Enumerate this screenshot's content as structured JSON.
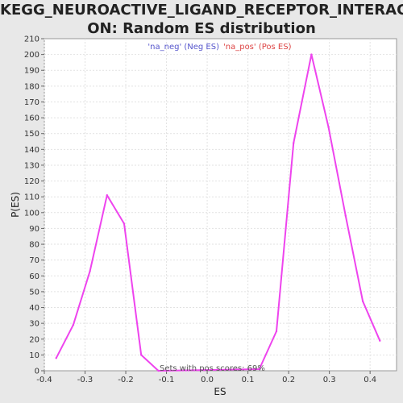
{
  "chart_data": {
    "type": "line",
    "title_line1": "KEGG_NEUROACTIVE_LIGAND_RECEPTOR_INTERACTI",
    "title_line2": "ON: Random ES distribution",
    "xlabel": "ES",
    "ylabel": "P(ES)",
    "xlim": [
      -0.4,
      0.465
    ],
    "ylim": [
      0,
      210
    ],
    "xticks": [
      "-0.4",
      "-0.3",
      "-0.2",
      "-0.1",
      "0.0",
      "0.1",
      "0.2",
      "0.3",
      "0.4"
    ],
    "xtick_values": [
      -0.4,
      -0.3,
      -0.2,
      -0.1,
      0.0,
      0.1,
      0.2,
      0.3,
      0.4
    ],
    "ytick_step": 10,
    "grid": true,
    "legend": [
      {
        "text": "'na_neg' (Neg ES)",
        "color": "#5555cc"
      },
      {
        "text": "'na_pos' (Pos ES)",
        "color": "#dd4444"
      }
    ],
    "annotation": "Sets with pos scores: 69%",
    "series": [
      {
        "color": "#ee44ee",
        "x": [
          -0.371,
          -0.329,
          -0.288,
          -0.246,
          -0.204,
          -0.162,
          -0.12,
          0.128,
          0.17,
          0.212,
          0.256,
          0.298,
          0.34,
          0.382,
          0.424
        ],
        "y": [
          8,
          29,
          63,
          111,
          93,
          10,
          0,
          1,
          25,
          144,
          200,
          154,
          98,
          44,
          19
        ]
      }
    ]
  }
}
